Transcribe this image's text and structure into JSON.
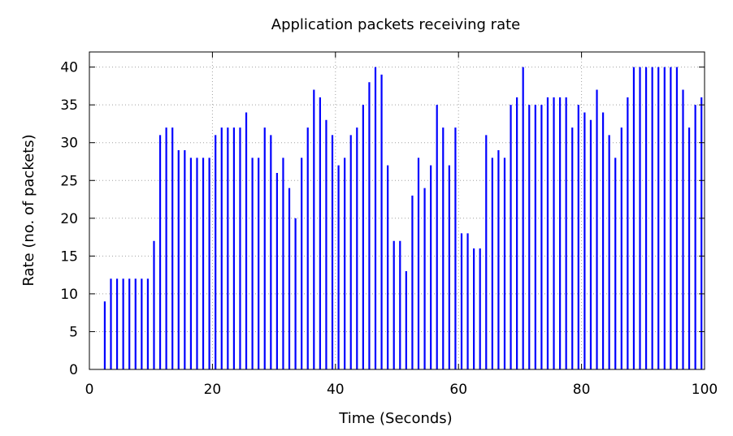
{
  "chart_data": {
    "type": "bar",
    "style": "impulses",
    "title": "Application packets receiving rate",
    "xlabel": "Time (Seconds)",
    "ylabel": "Rate (no. of packets)",
    "xlim": [
      0,
      100
    ],
    "ylim": [
      0,
      42
    ],
    "xticks": [
      0,
      20,
      40,
      60,
      80,
      100
    ],
    "yticks": [
      0,
      5,
      10,
      15,
      20,
      25,
      30,
      35,
      40
    ],
    "grid": true,
    "series_color": "#0000ff",
    "x": [
      2.5,
      3.5,
      4.5,
      5.5,
      6.5,
      7.5,
      8.5,
      9.5,
      10.5,
      11.5,
      12.5,
      13.5,
      14.5,
      15.5,
      16.5,
      17.5,
      18.5,
      19.5,
      20.5,
      21.5,
      22.5,
      23.5,
      24.5,
      25.5,
      26.5,
      27.5,
      28.5,
      29.5,
      30.5,
      31.5,
      32.5,
      33.5,
      34.5,
      35.5,
      36.5,
      37.5,
      38.5,
      39.5,
      40.5,
      41.5,
      42.5,
      43.5,
      44.5,
      45.5,
      46.5,
      47.5,
      48.5,
      49.5,
      50.5,
      51.5,
      52.5,
      53.5,
      54.5,
      55.5,
      56.5,
      57.5,
      58.5,
      59.5,
      60.5,
      61.5,
      62.5,
      63.5,
      64.5,
      65.5,
      66.5,
      67.5,
      68.5,
      69.5,
      70.5,
      71.5,
      72.5,
      73.5,
      74.5,
      75.5,
      76.5,
      77.5,
      78.5,
      79.5,
      80.5,
      81.5,
      82.5,
      83.5,
      84.5,
      85.5,
      86.5,
      87.5,
      88.5,
      89.5,
      90.5,
      91.5,
      92.5,
      93.5,
      94.5,
      95.5,
      96.5,
      97.5,
      98.5,
      99.5
    ],
    "values": [
      9,
      12,
      12,
      12,
      12,
      12,
      12,
      12,
      17,
      31,
      32,
      32,
      29,
      29,
      28,
      28,
      28,
      28,
      31,
      32,
      32,
      32,
      32,
      34,
      28,
      28,
      32,
      31,
      26,
      28,
      24,
      20,
      28,
      32,
      37,
      36,
      33,
      31,
      27,
      28,
      31,
      32,
      35,
      38,
      40,
      39,
      27,
      17,
      17,
      13,
      23,
      28,
      24,
      27,
      35,
      32,
      27,
      32,
      18,
      18,
      16,
      16,
      31,
      28,
      29,
      28,
      35,
      36,
      40,
      35,
      35,
      35,
      36,
      36,
      36,
      36,
      32,
      35,
      34,
      33,
      37,
      34,
      31,
      28,
      32,
      36,
      40,
      40,
      40,
      40,
      40,
      40,
      40,
      40,
      37,
      32,
      35,
      36
    ]
  }
}
